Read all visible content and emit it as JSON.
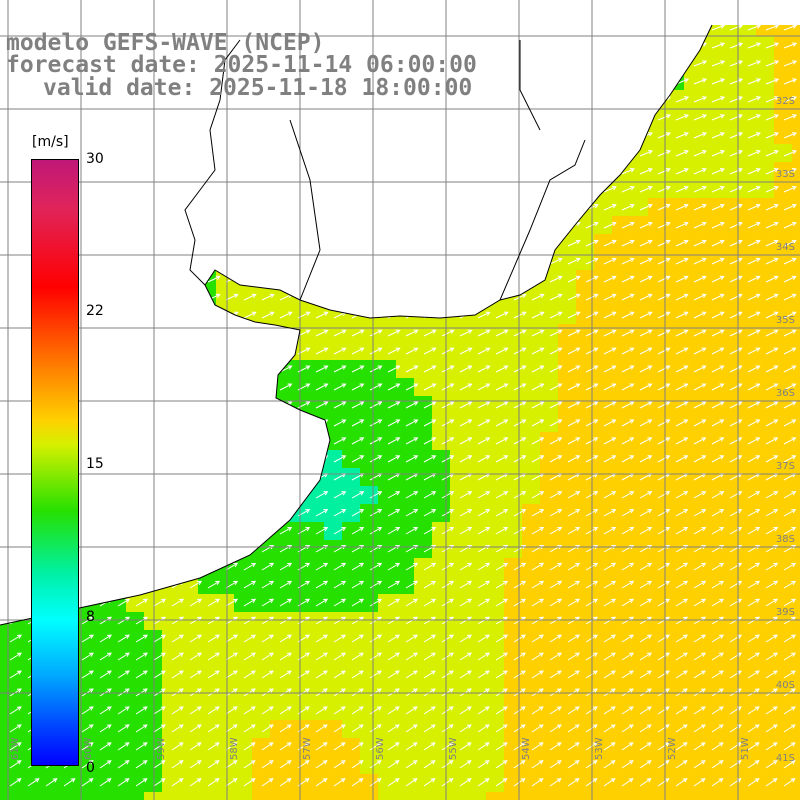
{
  "title": {
    "model": "modelo GEFS-WAVE (NCEP)",
    "forecast": "forecast date: 2025-11-14 06:00:00",
    "valid": "valid date: 2025-11-18 18:00:00"
  },
  "colorbar": {
    "units": "[m/s]",
    "ticks": [
      "30",
      "22",
      "15",
      "8",
      "0"
    ],
    "stops": [
      "#0000ff",
      "#00aaff",
      "#00ffff",
      "#00f0a0",
      "#26e000",
      "#d6f000",
      "#ffd000",
      "#ff6a00",
      "#ff0000",
      "#e0245a",
      "#c01878"
    ]
  },
  "lat_labels": [
    "32S",
    "33S",
    "34S",
    "35S",
    "36S",
    "37S",
    "38S",
    "39S",
    "40S",
    "41S"
  ],
  "lon_labels": [
    "61W",
    "60W",
    "59W",
    "58W",
    "57W",
    "56W",
    "55W",
    "54W",
    "53W",
    "52W",
    "51W"
  ],
  "colors": {
    "grid": "#808080",
    "coast": "#000000",
    "arrow": "#ffffff",
    "land": "#ffffff"
  }
}
